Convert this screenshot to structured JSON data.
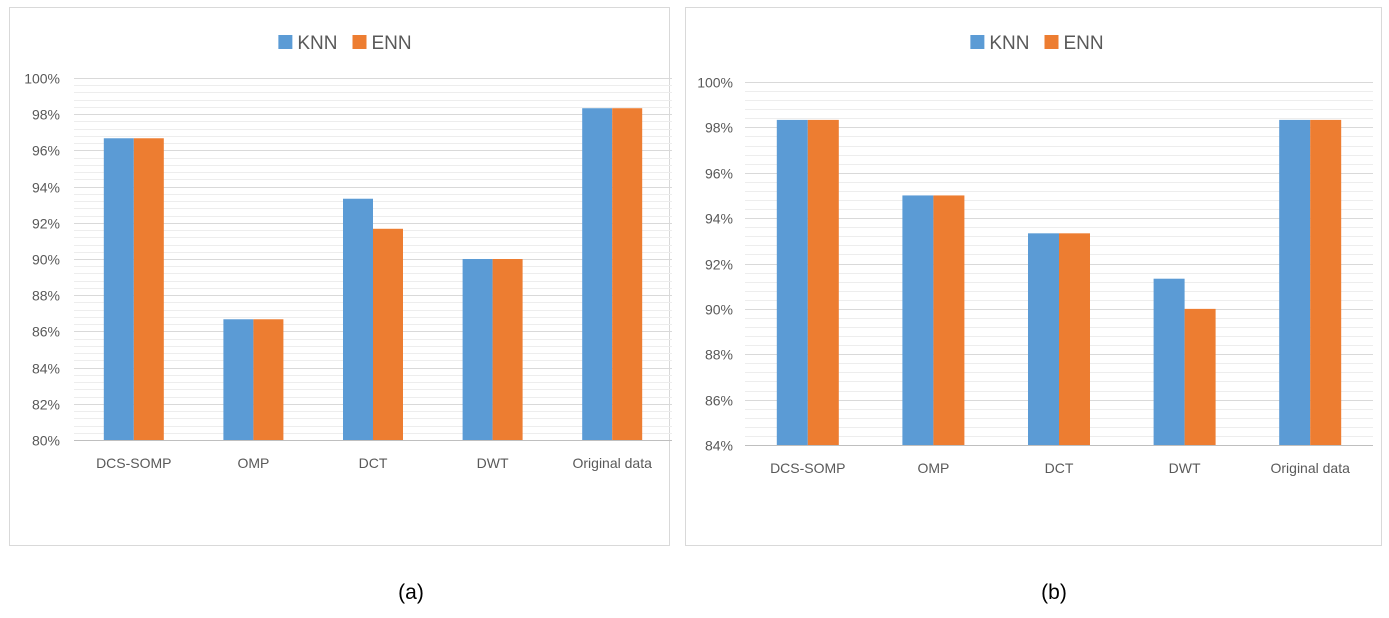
{
  "colors": {
    "knn": "#5b9bd5",
    "enn": "#ed7d31",
    "grid_major": "#d9d9d9",
    "grid_minor": "#ededed",
    "axis": "#bfbfbf",
    "text": "#595959",
    "frame": "#d9d9d9"
  },
  "captions": [
    "(a)",
    "(b)"
  ],
  "chart_data": [
    {
      "type": "bar",
      "title": "",
      "xlabel": "",
      "ylabel": "",
      "categories": [
        "DCS-SOMP",
        "OMP",
        "DCT",
        "DWT",
        "Original data"
      ],
      "series": [
        {
          "name": "KNN",
          "values": [
            0.9667,
            0.8667,
            0.9333,
            0.9,
            0.9833
          ]
        },
        {
          "name": "ENN",
          "values": [
            0.9667,
            0.8667,
            0.9167,
            0.9,
            0.9833
          ]
        }
      ],
      "ylim": [
        0.8,
        1.0
      ],
      "ytick_step": 0.02,
      "ytick_labels": [
        "80%",
        "82%",
        "84%",
        "86%",
        "88%",
        "90%",
        "92%",
        "94%",
        "96%",
        "98%",
        "100%"
      ],
      "grid": true,
      "legend": "top-center"
    },
    {
      "type": "bar",
      "title": "",
      "xlabel": "",
      "ylabel": "",
      "categories": [
        "DCS-SOMP",
        "OMP",
        "DCT",
        "DWT",
        "Original data"
      ],
      "series": [
        {
          "name": "KNN",
          "values": [
            0.9833,
            0.95,
            0.9333,
            0.9133,
            0.9833
          ]
        },
        {
          "name": "ENN",
          "values": [
            0.9833,
            0.95,
            0.9333,
            0.9,
            0.9833
          ]
        }
      ],
      "ylim": [
        0.84,
        1.0
      ],
      "ytick_step": 0.02,
      "ytick_labels": [
        "84%",
        "86%",
        "88%",
        "90%",
        "92%",
        "94%",
        "96%",
        "98%",
        "100%"
      ],
      "grid": true,
      "legend": "top-center"
    }
  ]
}
